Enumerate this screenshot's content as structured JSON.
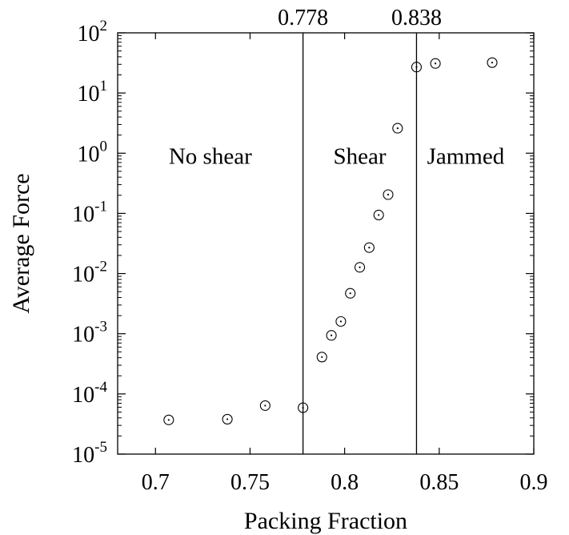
{
  "chart_data": {
    "type": "scatter",
    "title": "",
    "xlabel": "Packing Fraction",
    "ylabel": "Average Force",
    "xlim": [
      0.68,
      0.9
    ],
    "ylim": [
      1e-05,
      100
    ],
    "yscale": "log",
    "grid": false,
    "legend": "none",
    "marker": "dotted-circle",
    "x_ticks": [
      {
        "value": 0.7,
        "label": "0.7"
      },
      {
        "value": 0.75,
        "label": "0.75"
      },
      {
        "value": 0.8,
        "label": "0.8"
      },
      {
        "value": 0.85,
        "label": "0.85"
      },
      {
        "value": 0.9,
        "label": "0.9"
      }
    ],
    "y_ticks": [
      {
        "value": 1e-05,
        "base": "10",
        "exp": "-5"
      },
      {
        "value": 0.0001,
        "base": "10",
        "exp": "-4"
      },
      {
        "value": 0.001,
        "base": "10",
        "exp": "-3"
      },
      {
        "value": 0.01,
        "base": "10",
        "exp": "-2"
      },
      {
        "value": 0.1,
        "base": "10",
        "exp": "-1"
      },
      {
        "value": 1,
        "base": "10",
        "exp": "0"
      },
      {
        "value": 10,
        "base": "10",
        "exp": "1"
      },
      {
        "value": 100,
        "base": "10",
        "exp": "2"
      }
    ],
    "series": [
      {
        "points": [
          {
            "x": 0.707,
            "y": 3.7e-05
          },
          {
            "x": 0.738,
            "y": 3.8e-05
          },
          {
            "x": 0.758,
            "y": 6.4e-05
          },
          {
            "x": 0.778,
            "y": 5.9e-05
          },
          {
            "x": 0.788,
            "y": 0.00041
          },
          {
            "x": 0.793,
            "y": 0.00094
          },
          {
            "x": 0.798,
            "y": 0.0016
          },
          {
            "x": 0.803,
            "y": 0.0047
          },
          {
            "x": 0.808,
            "y": 0.0127
          },
          {
            "x": 0.813,
            "y": 0.027
          },
          {
            "x": 0.818,
            "y": 0.094
          },
          {
            "x": 0.823,
            "y": 0.205
          },
          {
            "x": 0.828,
            "y": 2.6
          },
          {
            "x": 0.838,
            "y": 27
          },
          {
            "x": 0.848,
            "y": 31
          },
          {
            "x": 0.878,
            "y": 32
          }
        ]
      }
    ],
    "vertical_lines": [
      {
        "x": 0.778,
        "label": "0.778"
      },
      {
        "x": 0.838,
        "label": "0.838"
      }
    ],
    "annotations": [
      {
        "text": "No shear",
        "x": 0.729,
        "y": 0.9
      },
      {
        "text": "Shear",
        "x": 0.808,
        "y": 0.9
      },
      {
        "text": "Jammed",
        "x": 0.864,
        "y": 0.9
      }
    ]
  }
}
